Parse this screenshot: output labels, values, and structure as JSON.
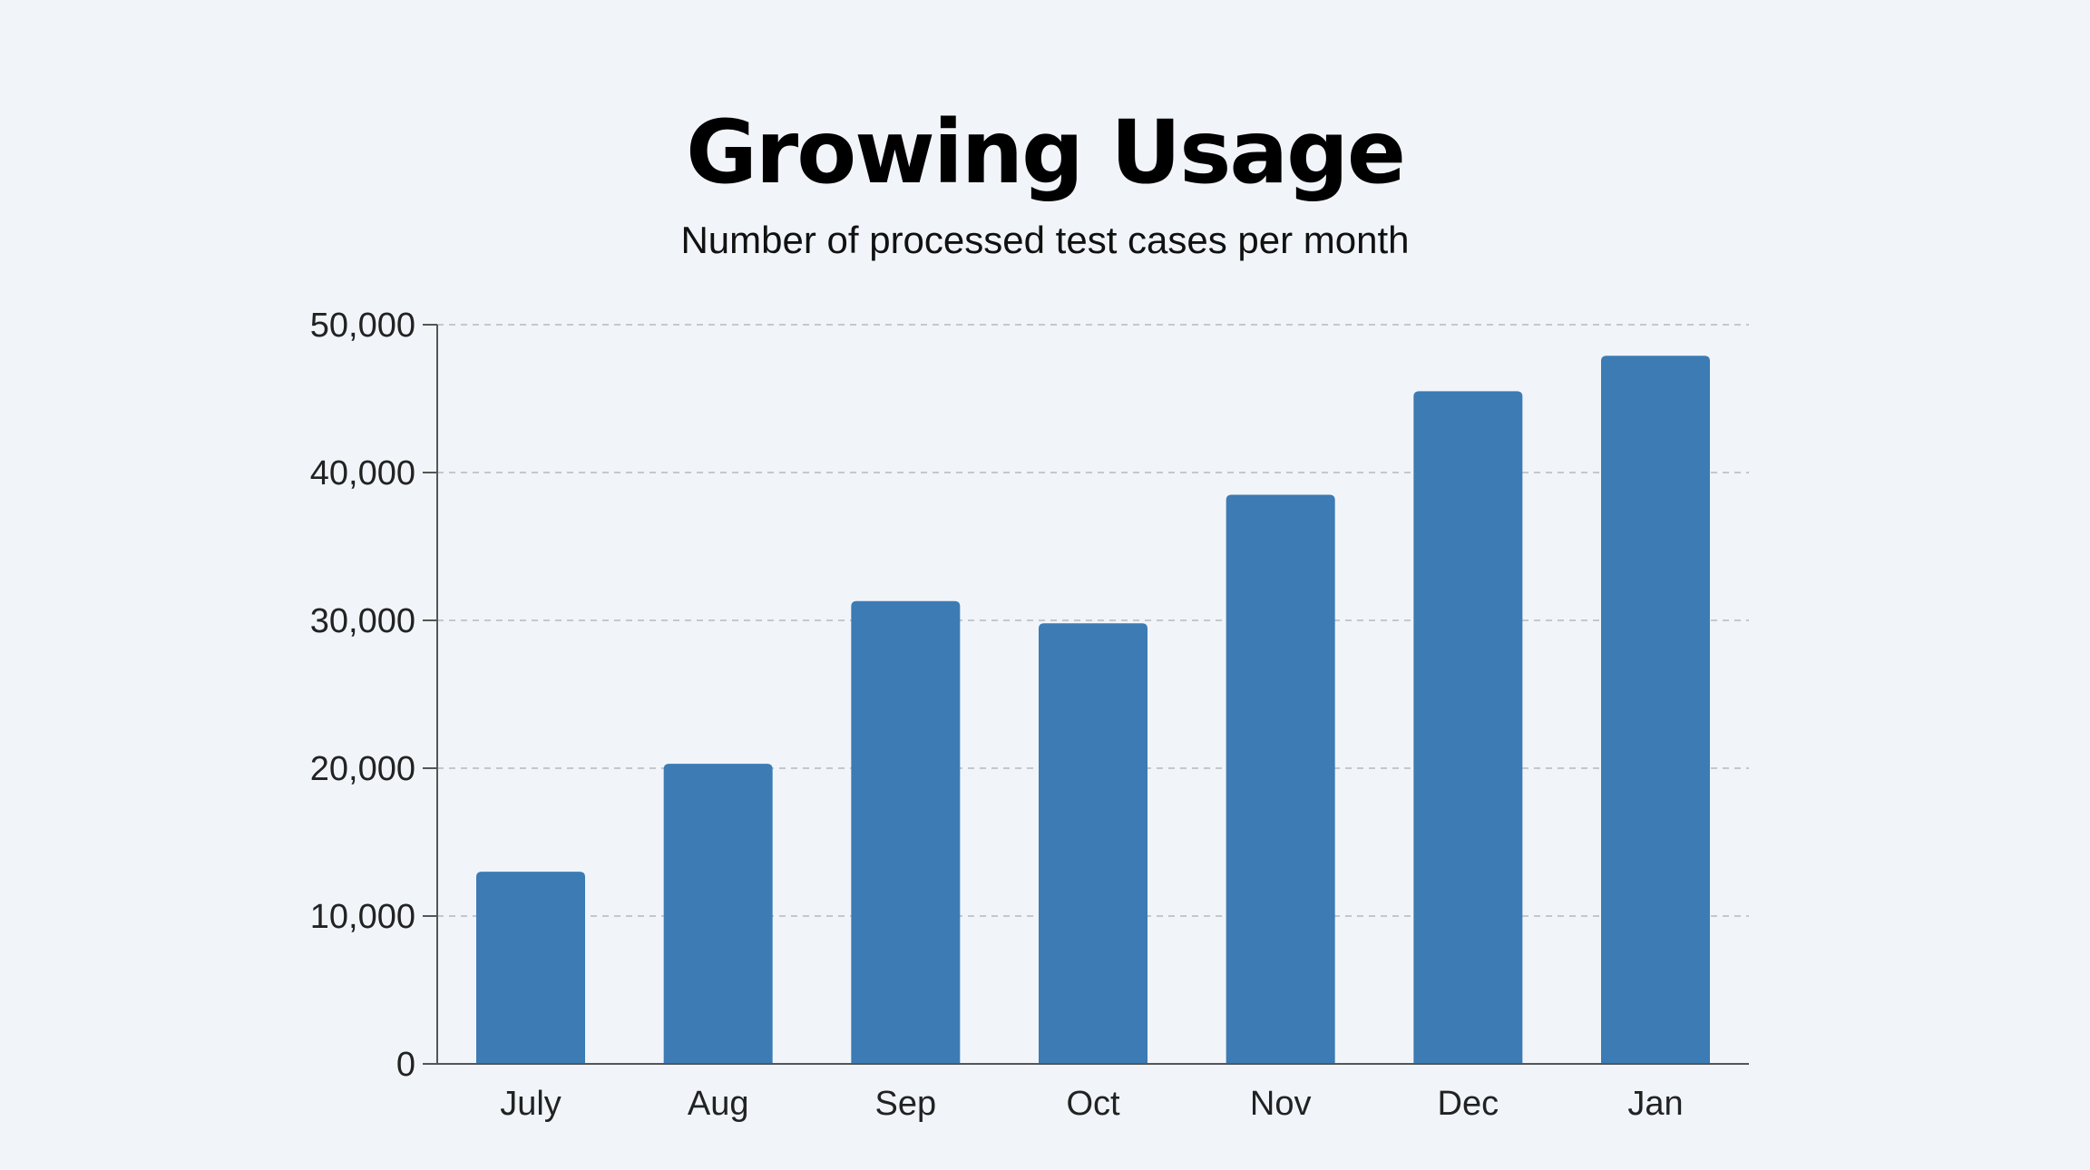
{
  "chart_data": {
    "type": "bar",
    "title": "Growing Usage",
    "subtitle": "Number of processed test cases per month",
    "categories": [
      "July",
      "Aug",
      "Sep",
      "Oct",
      "Nov",
      "Dec",
      "Jan"
    ],
    "values": [
      13000,
      20300,
      31300,
      29800,
      38500,
      45500,
      47900
    ],
    "ylim": [
      0,
      50000
    ],
    "yticks": [
      0,
      10000,
      20000,
      30000,
      40000,
      50000
    ],
    "ytick_labels": [
      "0",
      "10,000",
      "20,000",
      "30,000",
      "40,000",
      "50,000"
    ],
    "xlabel": "",
    "ylabel": "",
    "grid": true,
    "bar_color": "#3c7bb4",
    "grid_color": "#c4c8ce",
    "axis_color": "#555555",
    "background": "#f1f5fa"
  }
}
